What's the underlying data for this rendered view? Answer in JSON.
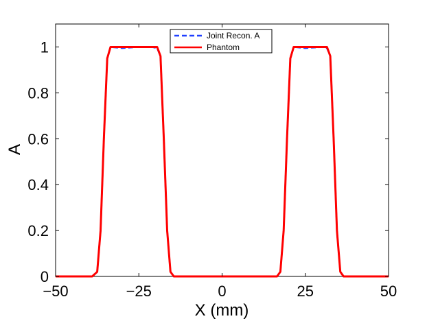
{
  "chart_data": {
    "type": "line",
    "xlabel": "X (mm)",
    "ylabel": "A",
    "xlim": [
      -50,
      50
    ],
    "ylim": [
      0,
      1.1
    ],
    "x_ticks": [
      -50,
      -25,
      0,
      25,
      50
    ],
    "x_tick_labels": [
      "−50",
      "−25",
      "0",
      "25",
      "50"
    ],
    "y_ticks": [
      0,
      0.2,
      0.4,
      0.6,
      0.8,
      1
    ],
    "y_tick_labels": [
      "0",
      "0.2",
      "0.4",
      "0.6",
      "0.8",
      "1"
    ],
    "grid": false,
    "legend_position": "top-center",
    "series": [
      {
        "name": "Joint Recon. A",
        "color": "#1f3fff",
        "style": "dashed",
        "x": [
          -50,
          -39,
          -37.5,
          -36.5,
          -35.5,
          -34.5,
          -33.5,
          -30,
          -25,
          -21,
          -19.5,
          -18.5,
          -17.5,
          -16.5,
          -15.5,
          -14.5,
          -10,
          0,
          10,
          16.5,
          17.5,
          18.5,
          19.5,
          20.5,
          21.5,
          25,
          30,
          31.5,
          32.5,
          33.5,
          34.5,
          35.5,
          36.5,
          50
        ],
        "y": [
          0,
          0,
          0.02,
          0.2,
          0.6,
          0.95,
          1,
          0.995,
          1,
          1,
          0.995,
          0.96,
          0.6,
          0.2,
          0.02,
          0,
          0,
          0,
          0,
          0,
          0.02,
          0.2,
          0.6,
          0.95,
          1,
          0.995,
          1,
          0.995,
          0.96,
          0.6,
          0.2,
          0.02,
          0,
          0
        ]
      },
      {
        "name": "Phantom",
        "color": "#ff0000",
        "style": "solid",
        "x": [
          -50,
          -39,
          -37.5,
          -36.5,
          -35.5,
          -34.5,
          -33.5,
          -30,
          -25,
          -21,
          -19.5,
          -18.5,
          -17.5,
          -16.5,
          -15.5,
          -14.5,
          -10,
          0,
          10,
          16.5,
          17.5,
          18.5,
          19.5,
          20.5,
          21.5,
          25,
          30,
          31.5,
          32.5,
          33.5,
          34.5,
          35.5,
          36.5,
          50
        ],
        "y": [
          0,
          0,
          0.02,
          0.2,
          0.6,
          0.95,
          1,
          1,
          1,
          1,
          1,
          0.96,
          0.6,
          0.2,
          0.02,
          0,
          0,
          0,
          0,
          0,
          0.02,
          0.2,
          0.6,
          0.95,
          1,
          1,
          1,
          1,
          0.96,
          0.6,
          0.2,
          0.02,
          0,
          0
        ]
      }
    ]
  }
}
